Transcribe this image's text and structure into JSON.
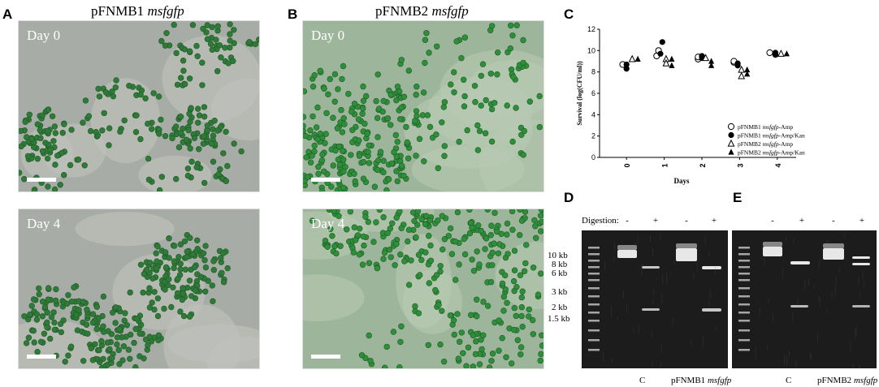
{
  "panels": {
    "A": {
      "letter": "A",
      "title_main": "pFNMB1",
      "title_italic": "msfgfp",
      "day0": "Day 0",
      "day4": "Day 4"
    },
    "B": {
      "letter": "B",
      "title_main": "pFNMB2",
      "title_italic": "msfgfp",
      "day0": "Day 0",
      "day4": "Day 4"
    },
    "C": {
      "letter": "C"
    },
    "D": {
      "letter": "D"
    },
    "E": {
      "letter": "E"
    }
  },
  "chart_data": {
    "type": "scatter",
    "xlabel": "Days",
    "ylabel": "Survival (log(CFU/ml))",
    "ylim": [
      0,
      12
    ],
    "yticks": [
      0,
      2,
      4,
      6,
      8,
      10,
      12
    ],
    "xticks": [
      "0",
      "1",
      "2",
      "3",
      "4"
    ],
    "series": [
      {
        "name": "pFNMB1 msfgfp-Amp",
        "marker": "open-circle",
        "points": [
          [
            -0.1,
            8.7
          ],
          [
            0.8,
            9.5
          ],
          [
            0.85,
            10.0
          ],
          [
            1.9,
            9.2
          ],
          [
            1.9,
            9.4
          ],
          [
            2.85,
            8.9
          ],
          [
            2.85,
            9.0
          ],
          [
            3.8,
            9.8
          ]
        ]
      },
      {
        "name": "pFNMB1 msfgfp-Amp/Kan",
        "marker": "filled-circle",
        "points": [
          [
            0.0,
            8.3
          ],
          [
            0.0,
            8.7
          ],
          [
            0.9,
            9.7
          ],
          [
            0.95,
            10.8
          ],
          [
            2.0,
            9.3
          ],
          [
            2.0,
            9.5
          ],
          [
            2.95,
            8.6
          ],
          [
            2.95,
            8.8
          ],
          [
            3.95,
            9.6
          ],
          [
            3.95,
            9.8
          ]
        ]
      },
      {
        "name": "pFNMB2 msfgfp-Amp",
        "marker": "open-triangle",
        "points": [
          [
            0.15,
            9.2
          ],
          [
            1.05,
            9.2
          ],
          [
            1.05,
            8.8
          ],
          [
            2.1,
            9.3
          ],
          [
            3.05,
            7.6
          ],
          [
            3.05,
            8.2
          ],
          [
            4.1,
            9.7
          ]
        ]
      },
      {
        "name": "pFNMB2 msfgfp-Amp/Kan",
        "marker": "filled-triangle",
        "points": [
          [
            0.3,
            9.2
          ],
          [
            1.2,
            9.2
          ],
          [
            1.2,
            8.6
          ],
          [
            2.25,
            8.6
          ],
          [
            2.25,
            9.0
          ],
          [
            3.2,
            7.8
          ],
          [
            3.2,
            8.2
          ],
          [
            4.25,
            9.7
          ]
        ]
      }
    ],
    "legend": {
      "position": "bottom-right",
      "items": [
        {
          "main": "pFNMB1",
          "italic": "msfgfp",
          "suffix": "-Amp"
        },
        {
          "main": "pFNMB1",
          "italic": "msfgfp",
          "suffix": "-Amp/Kan"
        },
        {
          "main": "pFNMB2",
          "italic": "msfgfp",
          "suffix": "-Amp"
        },
        {
          "main": "pFNMB2",
          "italic": "msfgfp",
          "suffix": "-Amp/Kan"
        }
      ]
    }
  },
  "gel": {
    "digestion_label": "Digestion:",
    "lane_marks": [
      "-",
      "+",
      "-",
      "+"
    ],
    "size_labels": [
      "10 kb",
      "8 kb",
      "6 kb",
      "3 kb",
      "2 kb",
      "1.5 kb"
    ],
    "D_labels": {
      "c": "C",
      "main": "pFNMB1",
      "italic": "msfgfp"
    },
    "E_labels": {
      "c": "C",
      "main": "pFNMB2",
      "italic": "msfgfp"
    }
  }
}
